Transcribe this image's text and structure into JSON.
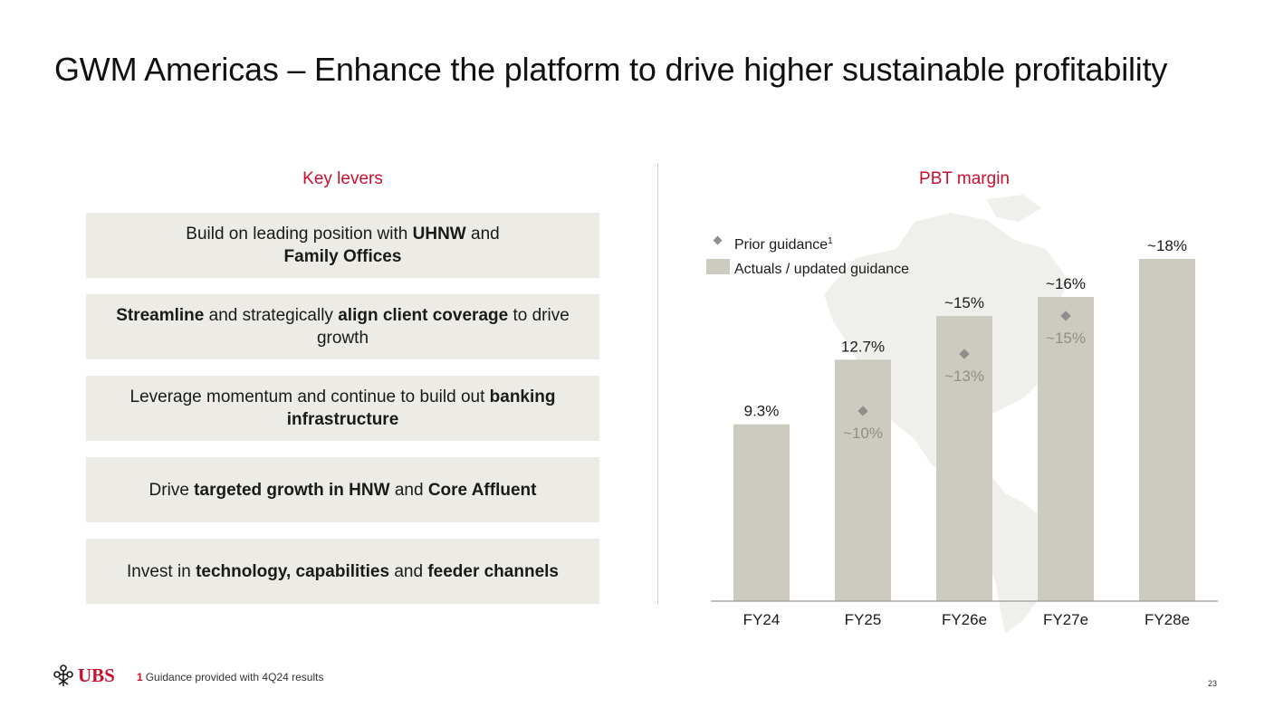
{
  "title": "GWM Americas – Enhance the platform to drive higher sustainable profitability",
  "key_levers": {
    "heading": "Key levers",
    "items": [
      {
        "segments": [
          {
            "t": "Build on leading position with ",
            "b": false
          },
          {
            "t": "UHNW",
            "b": true
          },
          {
            "t": " and ",
            "b": false
          },
          {
            "br": true
          },
          {
            "t": "Family Offices",
            "b": true
          }
        ]
      },
      {
        "segments": [
          {
            "t": "Streamline",
            "b": true
          },
          {
            "t": " and strategically ",
            "b": false
          },
          {
            "t": "align client coverage",
            "b": true
          },
          {
            "t": " to drive growth",
            "b": false
          }
        ]
      },
      {
        "segments": [
          {
            "t": "Leverage momentum and continue to build out ",
            "b": false
          },
          {
            "t": "banking infrastructure",
            "b": true
          }
        ]
      },
      {
        "segments": [
          {
            "t": "Drive ",
            "b": false
          },
          {
            "t": "targeted growth in HNW",
            "b": true
          },
          {
            "t": " and ",
            "b": false
          },
          {
            "t": "Core Affluent",
            "b": true
          }
        ]
      },
      {
        "segments": [
          {
            "t": "Invest in ",
            "b": false
          },
          {
            "t": "technology, capabilities",
            "b": true
          },
          {
            "t": " and ",
            "b": false
          },
          {
            "t": "feeder channels",
            "b": true
          }
        ]
      }
    ]
  },
  "pbt_heading": "PBT margin",
  "chart_data": {
    "type": "bar",
    "title": "PBT margin",
    "categories": [
      "FY24",
      "FY25",
      "FY26e",
      "FY27e",
      "FY28e"
    ],
    "series": [
      {
        "name": "Actuals / updated guidance",
        "values": [
          9.3,
          12.7,
          15,
          16,
          18
        ],
        "labels": [
          "9.3%",
          "12.7%",
          "~15%",
          "~16%",
          "~18%"
        ],
        "color": "#cdcbbf"
      },
      {
        "name": "Prior guidance",
        "name_sup": "1",
        "values": [
          null,
          10,
          13,
          15,
          null
        ],
        "labels": [
          "",
          "~10%",
          "~13%",
          "~15%",
          ""
        ],
        "color": "#8e8e8a"
      }
    ],
    "ylim": [
      0,
      19
    ],
    "xlabel": "",
    "ylabel": "",
    "legend": "top-left",
    "grid": false,
    "background": "map of the Americas (light grey)"
  },
  "colors": {
    "accent_red": "#c8102e",
    "bar": "#cdcbbf",
    "lever_bg": "#ecebe6",
    "diamond": "#8e8e8a"
  },
  "footer": {
    "logo_text": "UBS",
    "footnote_number": "1",
    "footnote_text": "Guidance provided with 4Q24 results",
    "page_number": "23"
  }
}
